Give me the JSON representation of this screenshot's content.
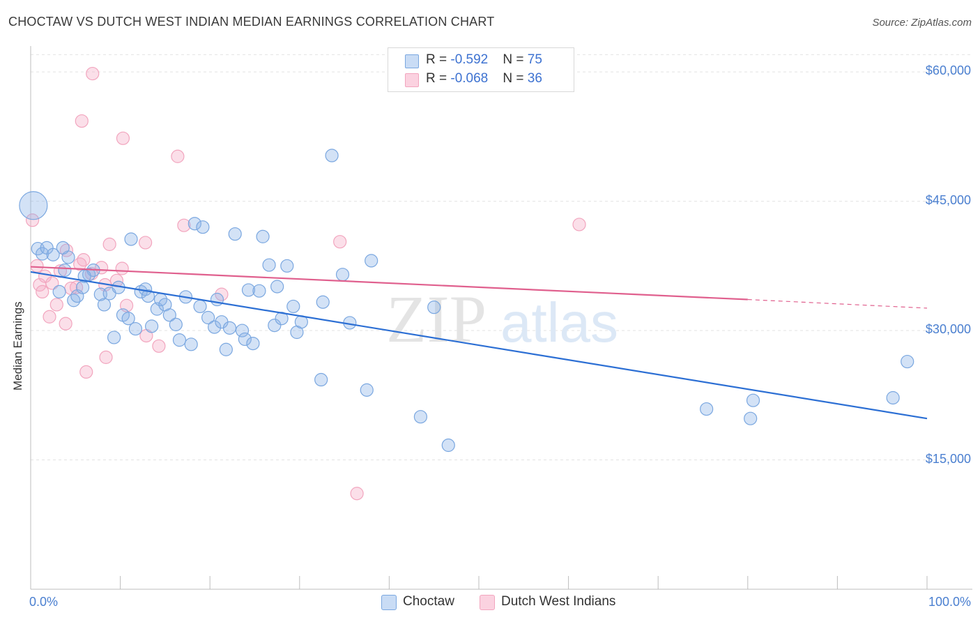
{
  "title": "CHOCTAW VS DUTCH WEST INDIAN MEDIAN EARNINGS CORRELATION CHART",
  "source": "Source: ZipAtlas.com",
  "watermark": {
    "zip": "ZIP",
    "atlas": "atlas"
  },
  "colors": {
    "choctaw": "#7aa7e0",
    "choctaw_line": "#2c6fd4",
    "dutch": "#f2a5be",
    "dutch_line": "#e0608e",
    "axis_text": "#4a7fd0"
  },
  "legend": {
    "rows": [
      {
        "r_label": "R = ",
        "r_value": "-0.592",
        "n_label": "N = ",
        "n_value": "75"
      },
      {
        "r_label": "R = ",
        "r_value": "-0.068",
        "n_label": "N = ",
        "n_value": "36"
      }
    ]
  },
  "chart_data": {
    "type": "scatter",
    "title": "CHOCTAW VS DUTCH WEST INDIAN MEDIAN EARNINGS CORRELATION CHART",
    "xlabel": "",
    "ylabel": "Median Earnings",
    "xlim": [
      0,
      100
    ],
    "ylim": [
      0,
      63000
    ],
    "x_tick_labels": [
      "0.0%",
      "100.0%"
    ],
    "y_ticks": [
      15000,
      30000,
      45000,
      60000
    ],
    "y_tick_labels": [
      "$15,000",
      "$30,000",
      "$45,000",
      "$60,000"
    ],
    "grid": true,
    "legend_position": "top-center",
    "series": [
      {
        "name": "Choctaw",
        "color": "#7aa7e0",
        "trend": {
          "x": [
            0,
            100
          ],
          "y": [
            36800,
            19800
          ]
        },
        "points": [
          {
            "x": 0.3,
            "y": 44500,
            "big": true
          },
          {
            "x": 0.8,
            "y": 39500
          },
          {
            "x": 1.3,
            "y": 38900
          },
          {
            "x": 1.8,
            "y": 39600
          },
          {
            "x": 2.5,
            "y": 38800
          },
          {
            "x": 3.2,
            "y": 34500
          },
          {
            "x": 3.8,
            "y": 37000
          },
          {
            "x": 4.2,
            "y": 38500
          },
          {
            "x": 4.8,
            "y": 33500
          },
          {
            "x": 5.2,
            "y": 34000
          },
          {
            "x": 5.8,
            "y": 35000
          },
          {
            "x": 6.5,
            "y": 36500
          },
          {
            "x": 7.0,
            "y": 37000
          },
          {
            "x": 7.8,
            "y": 34200
          },
          {
            "x": 8.2,
            "y": 33000
          },
          {
            "x": 8.8,
            "y": 34300
          },
          {
            "x": 9.3,
            "y": 29200
          },
          {
            "x": 9.8,
            "y": 35000
          },
          {
            "x": 10.3,
            "y": 31800
          },
          {
            "x": 10.9,
            "y": 31400
          },
          {
            "x": 11.2,
            "y": 40600
          },
          {
            "x": 11.7,
            "y": 30200
          },
          {
            "x": 12.3,
            "y": 34500
          },
          {
            "x": 12.8,
            "y": 34800
          },
          {
            "x": 13.1,
            "y": 34000
          },
          {
            "x": 13.5,
            "y": 30500
          },
          {
            "x": 14.1,
            "y": 32500
          },
          {
            "x": 14.5,
            "y": 33600
          },
          {
            "x": 15.0,
            "y": 33000
          },
          {
            "x": 15.5,
            "y": 31800
          },
          {
            "x": 16.2,
            "y": 30700
          },
          {
            "x": 16.6,
            "y": 28900
          },
          {
            "x": 17.3,
            "y": 33900
          },
          {
            "x": 17.9,
            "y": 28400
          },
          {
            "x": 18.3,
            "y": 42400
          },
          {
            "x": 18.9,
            "y": 32800
          },
          {
            "x": 19.2,
            "y": 42000
          },
          {
            "x": 19.8,
            "y": 31500
          },
          {
            "x": 20.5,
            "y": 30400
          },
          {
            "x": 20.8,
            "y": 33600
          },
          {
            "x": 21.3,
            "y": 31000
          },
          {
            "x": 21.8,
            "y": 27800
          },
          {
            "x": 22.2,
            "y": 30300
          },
          {
            "x": 22.8,
            "y": 41200
          },
          {
            "x": 23.6,
            "y": 30000
          },
          {
            "x": 23.9,
            "y": 29000
          },
          {
            "x": 24.3,
            "y": 34700
          },
          {
            "x": 24.8,
            "y": 28500
          },
          {
            "x": 25.5,
            "y": 34600
          },
          {
            "x": 25.9,
            "y": 40900
          },
          {
            "x": 26.6,
            "y": 37600
          },
          {
            "x": 27.2,
            "y": 30600
          },
          {
            "x": 27.5,
            "y": 35100
          },
          {
            "x": 28.0,
            "y": 31400
          },
          {
            "x": 28.6,
            "y": 37500
          },
          {
            "x": 29.3,
            "y": 32800
          },
          {
            "x": 29.7,
            "y": 29800
          },
          {
            "x": 30.2,
            "y": 31000
          },
          {
            "x": 32.4,
            "y": 24300
          },
          {
            "x": 32.6,
            "y": 33300
          },
          {
            "x": 33.6,
            "y": 50300
          },
          {
            "x": 34.8,
            "y": 36500
          },
          {
            "x": 35.6,
            "y": 30900
          },
          {
            "x": 37.5,
            "y": 23100
          },
          {
            "x": 38.0,
            "y": 38100
          },
          {
            "x": 43.5,
            "y": 20000
          },
          {
            "x": 45.0,
            "y": 32700
          },
          {
            "x": 46.6,
            "y": 16700
          },
          {
            "x": 75.4,
            "y": 20900
          },
          {
            "x": 80.3,
            "y": 19800
          },
          {
            "x": 80.6,
            "y": 21900
          },
          {
            "x": 96.2,
            "y": 22200
          },
          {
            "x": 97.8,
            "y": 26400
          },
          {
            "x": 6.0,
            "y": 36300
          },
          {
            "x": 3.6,
            "y": 39600
          }
        ]
      },
      {
        "name": "Dutch West Indians",
        "color": "#f2a5be",
        "trend": {
          "x": [
            0,
            80
          ],
          "y": [
            37400,
            33600
          ]
        },
        "trend_dashed": {
          "x": [
            80,
            100
          ],
          "y": [
            33600,
            32600
          ]
        },
        "points": [
          {
            "x": 0.2,
            "y": 42800
          },
          {
            "x": 0.7,
            "y": 37500
          },
          {
            "x": 1.0,
            "y": 35300
          },
          {
            "x": 1.3,
            "y": 34500
          },
          {
            "x": 1.6,
            "y": 36300
          },
          {
            "x": 2.1,
            "y": 31600
          },
          {
            "x": 2.4,
            "y": 35500
          },
          {
            "x": 2.9,
            "y": 33000
          },
          {
            "x": 3.3,
            "y": 36900
          },
          {
            "x": 3.9,
            "y": 30800
          },
          {
            "x": 4.5,
            "y": 34900
          },
          {
            "x": 5.1,
            "y": 35000
          },
          {
            "x": 5.5,
            "y": 37700
          },
          {
            "x": 5.7,
            "y": 54300
          },
          {
            "x": 5.9,
            "y": 38200
          },
          {
            "x": 6.2,
            "y": 25200
          },
          {
            "x": 6.8,
            "y": 36600
          },
          {
            "x": 6.9,
            "y": 59800
          },
          {
            "x": 7.9,
            "y": 37300
          },
          {
            "x": 8.3,
            "y": 35300
          },
          {
            "x": 8.4,
            "y": 26900
          },
          {
            "x": 8.8,
            "y": 40000
          },
          {
            "x": 10.2,
            "y": 37200
          },
          {
            "x": 10.3,
            "y": 52300
          },
          {
            "x": 10.7,
            "y": 32900
          },
          {
            "x": 12.8,
            "y": 40200
          },
          {
            "x": 12.9,
            "y": 29400
          },
          {
            "x": 14.3,
            "y": 28200
          },
          {
            "x": 16.4,
            "y": 50200
          },
          {
            "x": 17.1,
            "y": 42200
          },
          {
            "x": 21.3,
            "y": 34200
          },
          {
            "x": 34.5,
            "y": 40300
          },
          {
            "x": 36.4,
            "y": 11100
          },
          {
            "x": 61.2,
            "y": 42300
          },
          {
            "x": 4.0,
            "y": 39300
          },
          {
            "x": 9.6,
            "y": 35800
          }
        ]
      }
    ]
  }
}
